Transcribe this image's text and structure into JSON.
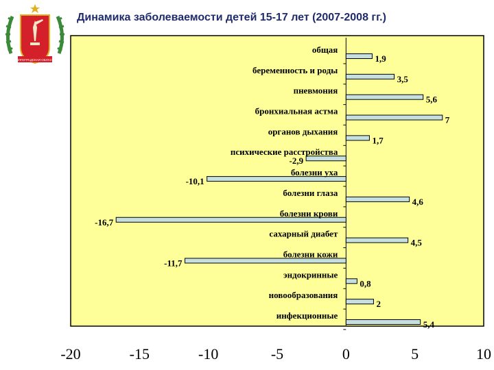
{
  "header": {
    "title": "Динамика заболеваемости детей 15-17 лет (2007-2008 гг.)"
  },
  "emblem": {
    "name": "volgograd-oblast-coat-of-arms",
    "caption": "ВОЛГОГРАДСКАЯ ОБЛАСТЬ"
  },
  "colors": {
    "plot_background": "#ffff99",
    "bar_fill": "#c6e0e0",
    "bar_stroke": "#000000",
    "emblem_red": "#d4202a",
    "emblem_green": "#3a8a3a",
    "emblem_gold": "#e0b020"
  },
  "chart_data": {
    "type": "bar",
    "orientation": "horizontal",
    "categories": [
      "общая",
      "беременность и роды",
      "пневмония",
      "бронхиальная астма",
      "органов дыхания",
      "психические расстройства",
      "болезни уха",
      "болезни глаза",
      "болезни крови",
      "сахарный диабет",
      "болезни кожи",
      "эндокринные",
      "новообразования",
      "инфекционные"
    ],
    "values": [
      1.9,
      3.5,
      5.6,
      7,
      1.7,
      -2.9,
      -10.1,
      4.6,
      -16.7,
      4.5,
      -11.7,
      0.8,
      2,
      5.4
    ],
    "value_labels": [
      "1,9",
      "3,5",
      "5,6",
      "7",
      "1,7",
      "-2,9",
      "-10,1",
      "4,6",
      "-16,7",
      "4,5",
      "-11,7",
      "0,8",
      "2",
      "5,4"
    ],
    "xlim": [
      -20,
      10
    ],
    "xticks": [
      -20,
      -15,
      -10,
      -5,
      0,
      5,
      10
    ],
    "xtick_labels": [
      "-20",
      "-15",
      "-10",
      "-5",
      "0",
      "5",
      "10"
    ],
    "grid": false,
    "legend": "none"
  }
}
